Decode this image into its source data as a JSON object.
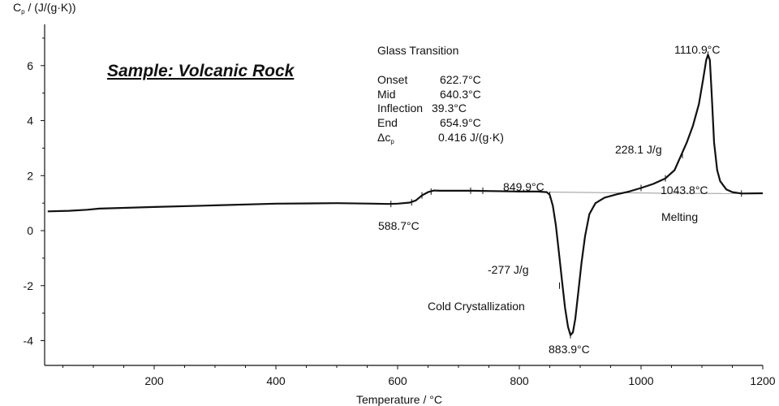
{
  "chart_data": {
    "type": "line",
    "xlabel": "Temperature / °C",
    "ylabel": "Cp / (J/(g·K))",
    "ylabel_main": "C",
    "ylabel_sub": "p",
    "ylabel_rest": " / (J/(g·K))",
    "xlim": [
      20,
      1200
    ],
    "ylim": [
      -4.9,
      7.5
    ],
    "x_ticks": [
      200,
      400,
      600,
      800,
      1000,
      1200
    ],
    "y_ticks": [
      -4,
      -2,
      0,
      2,
      4,
      6
    ],
    "sample_label": "Sample: Volcanic Rock",
    "glass_transition": {
      "title": "Glass Transition",
      "rows": [
        {
          "label": "Onset",
          "value": "622.7°C"
        },
        {
          "label": "Mid",
          "value": "640.3°C"
        },
        {
          "label": "Inflection",
          "value": "39.3°C"
        },
        {
          "label": "End",
          "value": "654.9°C"
        }
      ],
      "delta_label_main": "Δc",
      "delta_label_sub": "p",
      "delta_value": "0.416 J/(g·K)"
    },
    "annotations": {
      "glass_start": "588.7°C",
      "cryst_onset": "849.9°C",
      "cryst_peak": "883.9°C",
      "cryst_area": "-277 J/g",
      "cryst_name": "Cold Crystallization",
      "melt_area": "228.1 J/g",
      "melt_peak": "1110.9°C",
      "melt_end": "1043.8°C",
      "melt_name": "Melting"
    },
    "series": [
      {
        "values": [
          [
            25,
            0.7
          ],
          [
            60,
            0.72
          ],
          [
            90,
            0.76
          ],
          [
            110,
            0.8
          ],
          [
            200,
            0.86
          ],
          [
            300,
            0.92
          ],
          [
            400,
            0.98
          ],
          [
            500,
            1.0
          ],
          [
            560,
            0.98
          ],
          [
            585,
            0.97
          ],
          [
            600,
            0.98
          ],
          [
            620,
            1.02
          ],
          [
            630,
            1.1
          ],
          [
            640,
            1.28
          ],
          [
            650,
            1.4
          ],
          [
            660,
            1.46
          ],
          [
            670,
            1.45
          ],
          [
            720,
            1.45
          ],
          [
            800,
            1.42
          ],
          [
            830,
            1.42
          ],
          [
            845,
            1.4
          ],
          [
            850,
            1.3
          ],
          [
            855,
            0.9
          ],
          [
            860,
            0.2
          ],
          [
            865,
            -0.8
          ],
          [
            870,
            -1.8
          ],
          [
            875,
            -2.8
          ],
          [
            880,
            -3.5
          ],
          [
            884,
            -3.8
          ],
          [
            888,
            -3.7
          ],
          [
            892,
            -3.2
          ],
          [
            897,
            -2.2
          ],
          [
            902,
            -1.2
          ],
          [
            908,
            -0.2
          ],
          [
            915,
            0.6
          ],
          [
            925,
            1.0
          ],
          [
            940,
            1.2
          ],
          [
            960,
            1.32
          ],
          [
            980,
            1.42
          ],
          [
            1000,
            1.55
          ],
          [
            1020,
            1.7
          ],
          [
            1040,
            1.9
          ],
          [
            1055,
            2.2
          ],
          [
            1065,
            2.7
          ],
          [
            1075,
            3.2
          ],
          [
            1085,
            3.8
          ],
          [
            1095,
            4.6
          ],
          [
            1102,
            5.5
          ],
          [
            1107,
            6.2
          ],
          [
            1110,
            6.4
          ],
          [
            1113,
            6.2
          ],
          [
            1116,
            5.0
          ],
          [
            1120,
            3.2
          ],
          [
            1125,
            2.2
          ],
          [
            1130,
            1.8
          ],
          [
            1140,
            1.5
          ],
          [
            1150,
            1.4
          ],
          [
            1165,
            1.35
          ],
          [
            1200,
            1.36
          ]
        ]
      }
    ],
    "baselines": [
      {
        "values": [
          [
            850,
            1.4
          ],
          [
            1042,
            1.36
          ]
        ]
      },
      {
        "values": [
          [
            1042,
            1.36
          ],
          [
            1165,
            1.35
          ]
        ]
      }
    ],
    "tick_marks_on_curve": [
      [
        589,
        0.97
      ],
      [
        623,
        1.03
      ],
      [
        640,
        1.28
      ],
      [
        655,
        1.42
      ],
      [
        720,
        1.45
      ],
      [
        740,
        1.45
      ],
      [
        850,
        1.3
      ],
      [
        866,
        -2.0
      ],
      [
        884,
        -3.8
      ],
      [
        1000,
        1.55
      ],
      [
        1040,
        1.9
      ],
      [
        1068,
        2.75
      ],
      [
        1110,
        6.4
      ],
      [
        1165,
        1.35
      ]
    ]
  }
}
